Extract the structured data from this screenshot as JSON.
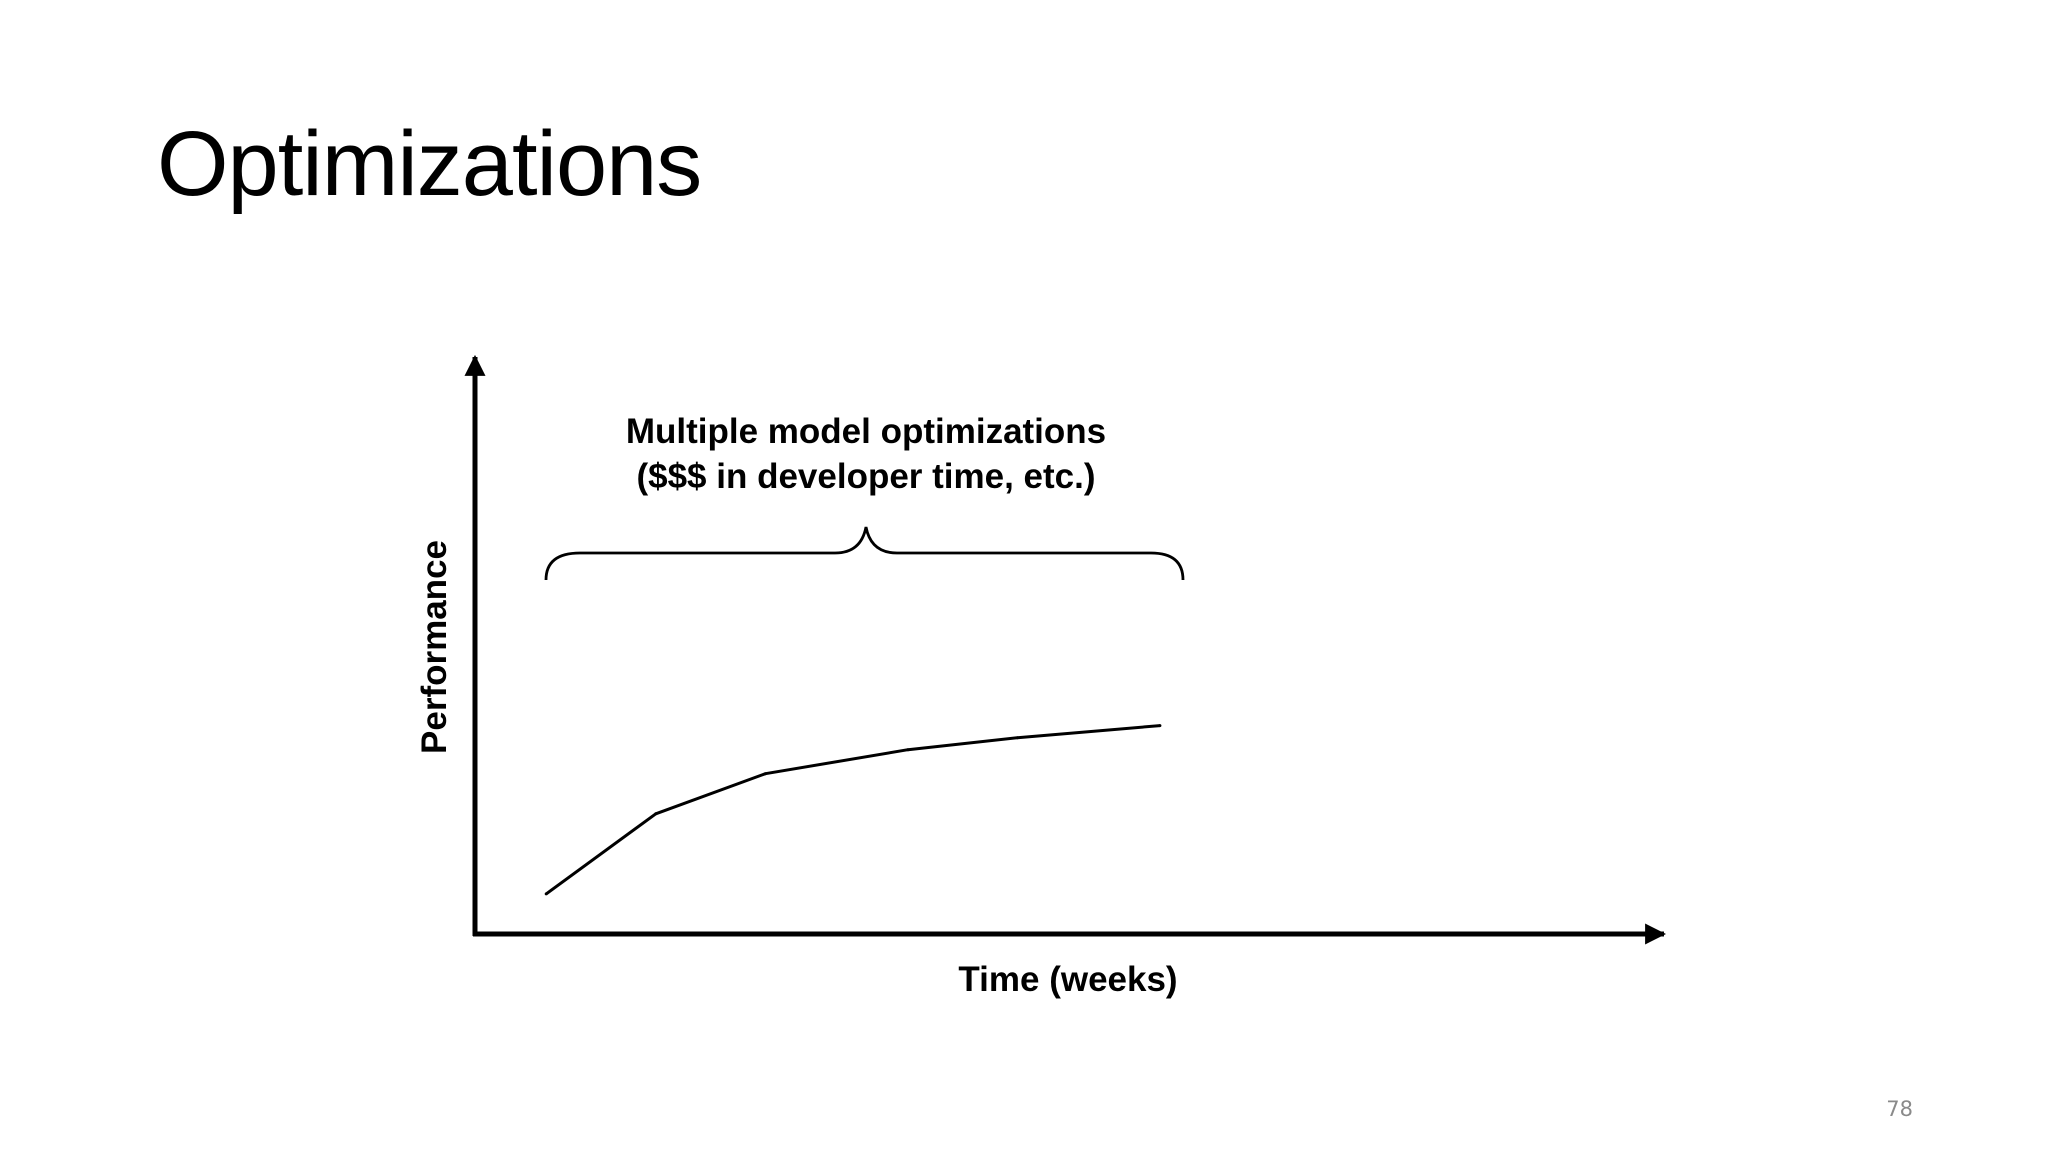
{
  "slide": {
    "title": "Optimizations",
    "page_number": "78"
  },
  "chart_data": {
    "type": "line",
    "title": "",
    "xlabel": "Time (weeks)",
    "ylabel": "Performance",
    "grid": false,
    "legend": "none",
    "series": [
      {
        "values_x": [
          0,
          1,
          2,
          3.3,
          4.3,
          5.6
        ],
        "values_y": [
          0.1,
          0.3,
          0.4,
          0.46,
          0.49,
          0.52
        ],
        "color": "#000000"
      }
    ],
    "xlim": [
      -0.65,
      10.2
    ],
    "ylim": [
      0,
      1.44
    ],
    "annotation": {
      "lines": [
        "Multiple model optimizations",
        "($$$ in developer time, etc.)"
      ],
      "brace_from_x": 0,
      "brace_to_x": 5.6
    }
  }
}
